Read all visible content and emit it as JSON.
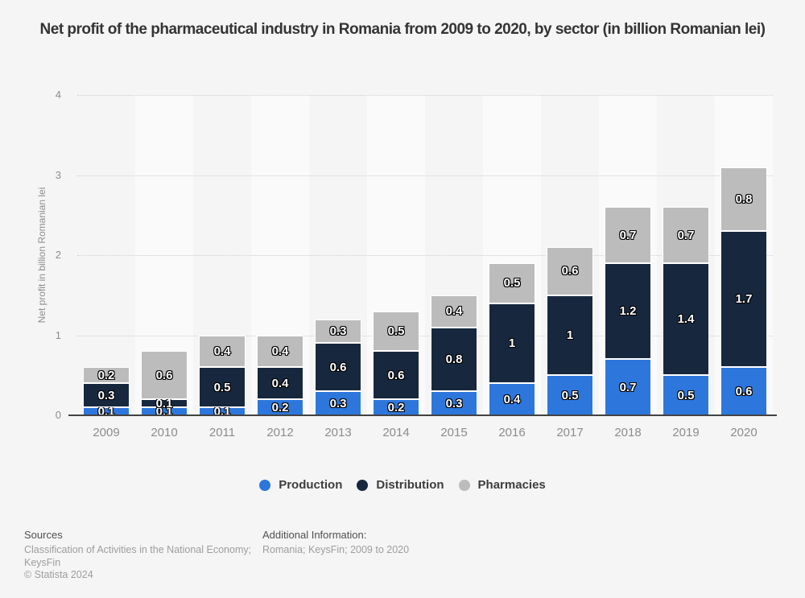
{
  "title": "Net profit of the pharmaceutical industry in Romania from 2009 to 2020, by sector (in billion Romanian lei)",
  "chart_data": {
    "type": "bar",
    "stacked": true,
    "title": "Net profit of the pharmaceutical industry in Romania from 2009 to 2020, by sector (in billion Romanian lei)",
    "categories": [
      "2009",
      "2010",
      "2011",
      "2012",
      "2013",
      "2014",
      "2015",
      "2016",
      "2017",
      "2018",
      "2019",
      "2020"
    ],
    "series": [
      {
        "name": "Production",
        "color": "#2d77dc",
        "values": [
          0.1,
          0.1,
          0.1,
          0.2,
          0.3,
          0.2,
          0.3,
          0.4,
          0.5,
          0.7,
          0.5,
          0.6
        ]
      },
      {
        "name": "Distribution",
        "color": "#17283e",
        "values": [
          0.3,
          0.1,
          0.5,
          0.4,
          0.6,
          0.6,
          0.8,
          1,
          1,
          1.2,
          1.4,
          1.7
        ]
      },
      {
        "name": "Pharmacies",
        "color": "#bcbcbc",
        "values": [
          0.2,
          0.6,
          0.4,
          0.4,
          0.3,
          0.5,
          0.4,
          0.5,
          0.6,
          0.7,
          0.7,
          0.8
        ]
      }
    ],
    "xlabel": "",
    "ylabel": "Net profit in billion Romanian lei",
    "ylim": [
      0,
      4
    ],
    "yticks": [
      "0",
      "1",
      "2",
      "3",
      "4"
    ],
    "grid": "horizontal-dotted",
    "legend_position": "bottom",
    "data_labels": "white-with-black-outline",
    "plot_band_color": "#fafafa",
    "background_color": "#f5f5f5"
  },
  "footer": {
    "sources_heading": "Sources",
    "sources_lines": [
      "Classification of Activities in the National Economy;",
      "KeysFin"
    ],
    "copyright": "© Statista 2024",
    "additional_heading": "Additional Information:",
    "additional_text": "Romania; KeysFin; 2009 to 2020"
  }
}
